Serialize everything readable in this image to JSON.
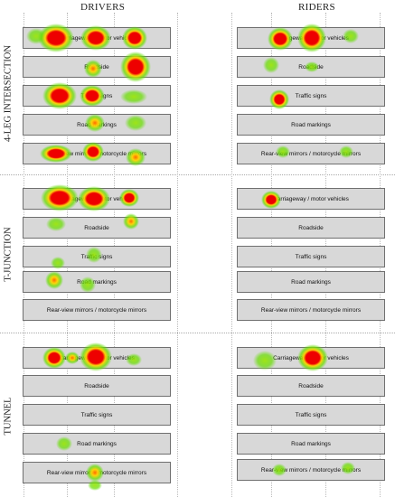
{
  "columns": {
    "drivers": "DRIVERS",
    "riders": "RIDERS"
  },
  "sections": [
    {
      "label": "4-LEG INTERSECTION",
      "drivers": [
        "Carriageway / motor vehicles",
        "Roadside",
        "Traffic signs",
        "Road markings",
        "Rear-view mirrors / motorcycle mirrors"
      ],
      "riders": [
        "Carriageway / motor vehicles",
        "Roadside",
        "Traffic signs",
        "Road markings",
        "Rear-view mirrors / motorcycle mirrors"
      ]
    },
    {
      "label": "T-JUNCTION",
      "drivers": [
        "Carriageway / motor vehicles",
        "Roadside",
        "Traffic signs",
        "Road markings",
        "Rear-view mirrors / motorcycle mirrors"
      ],
      "riders": [
        "Carriageway / motor vehicles",
        "Roadside",
        "Traffic signs",
        "Road markings",
        "Rear-view mirrors / motorcycle mirrors"
      ]
    },
    {
      "label": "TUNNEL",
      "drivers": [
        "Carriageway / motor vehicles",
        "Roadside",
        "Traffic signs",
        "Road markings",
        "Rear-view mirrors / motorcycle mirrors"
      ],
      "riders": [
        "Carriageway / motor vehicles",
        "Roadside",
        "Traffic signs",
        "Road markings",
        "Rear-view mirrors / motorcycle mirrors"
      ]
    }
  ],
  "heat_colors": {
    "hot": "#ee0000",
    "warm": "#ffd400",
    "cool": "#66dd00"
  }
}
